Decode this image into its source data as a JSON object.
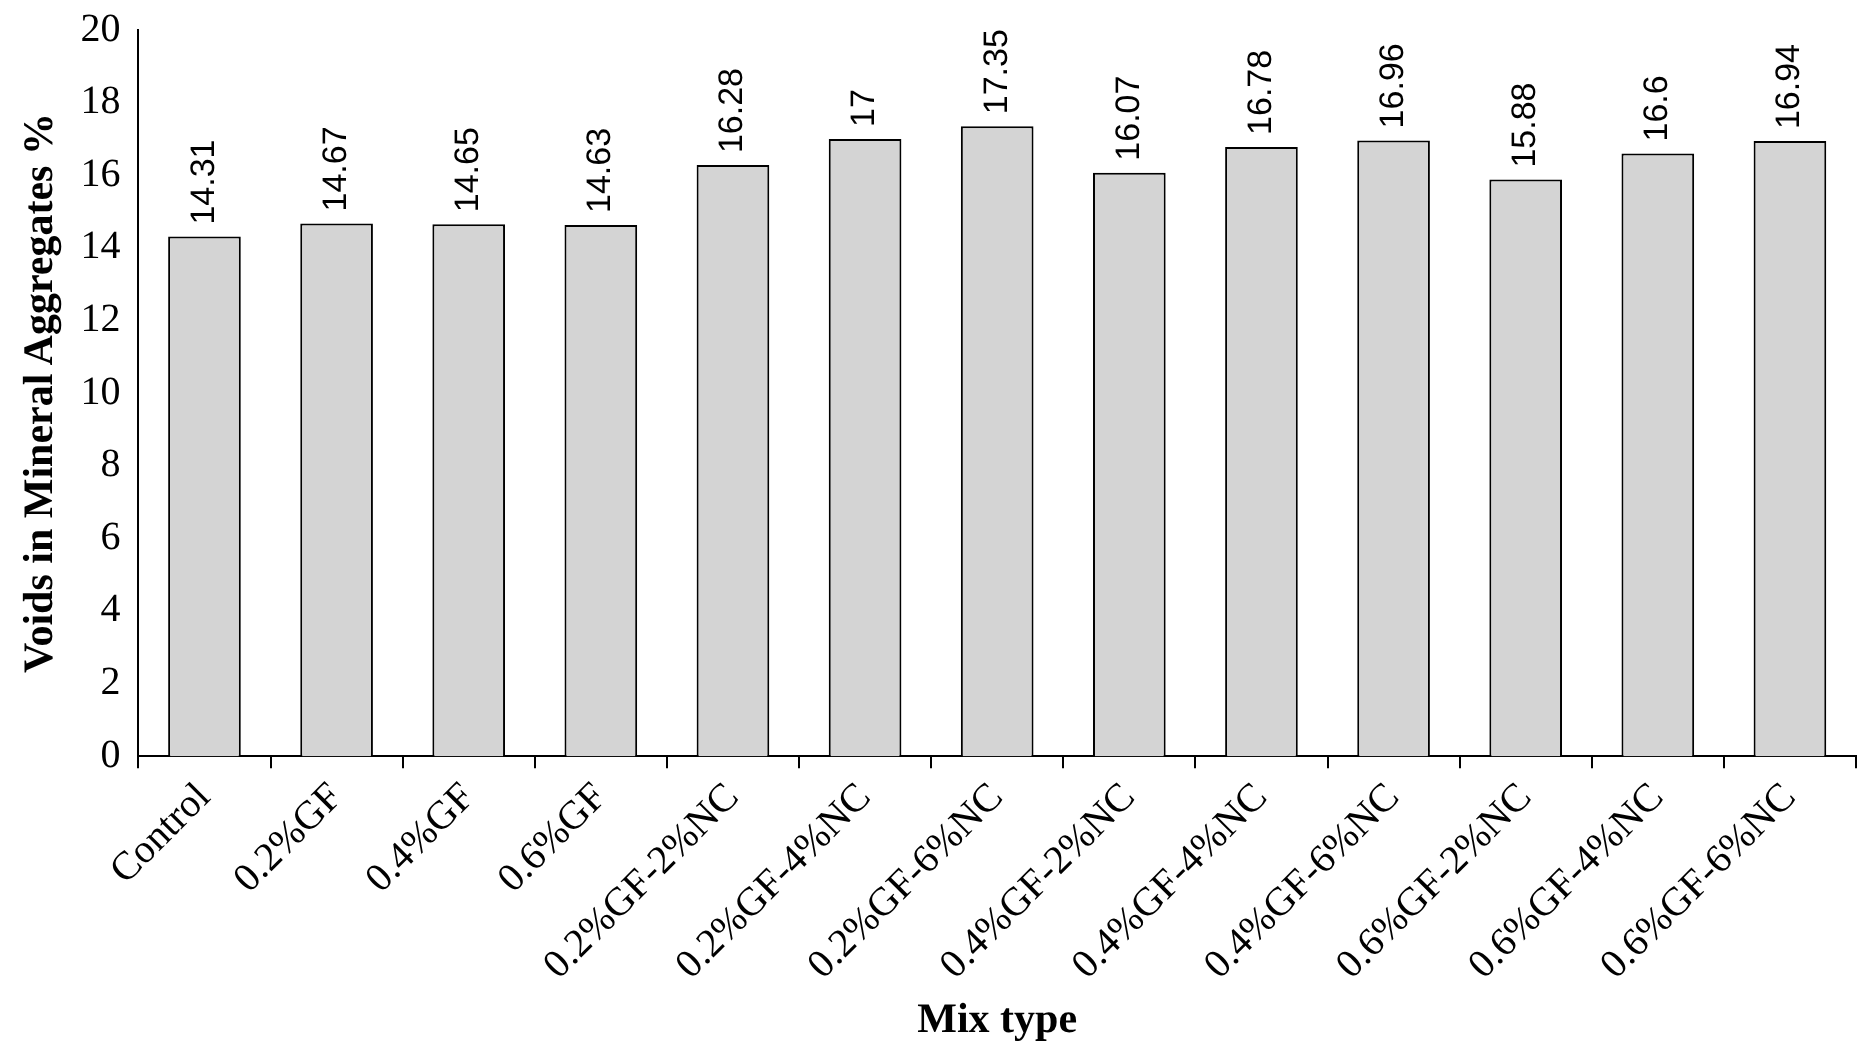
{
  "chart_data": {
    "type": "bar",
    "xlabel": "Mix type",
    "ylabel": "Voids in Mineral Aggregates %",
    "categories": [
      "Control",
      "0.2%GF",
      "0.4%GF",
      "0.6%GF",
      "0.2%GF-2%NC",
      "0.2%GF-4%NC",
      "0.2%GF-6%NC",
      "0.4%GF-2%NC",
      "0.4%GF-4%NC",
      "0.4%GF-6%NC",
      "0.6%GF-2%NC",
      "0.6%GF-4%NC",
      "0.6%GF-6%NC"
    ],
    "values": [
      14.31,
      14.67,
      14.65,
      14.63,
      16.28,
      17,
      17.35,
      16.07,
      16.78,
      16.96,
      15.88,
      16.6,
      16.94
    ],
    "color": "#d4d4d4",
    "ylim": [
      0,
      20
    ],
    "yticks": [
      0,
      2,
      4,
      6,
      8,
      10,
      12,
      14,
      16,
      18,
      20
    ],
    "data_labels": true,
    "grid": false,
    "legend": false
  }
}
